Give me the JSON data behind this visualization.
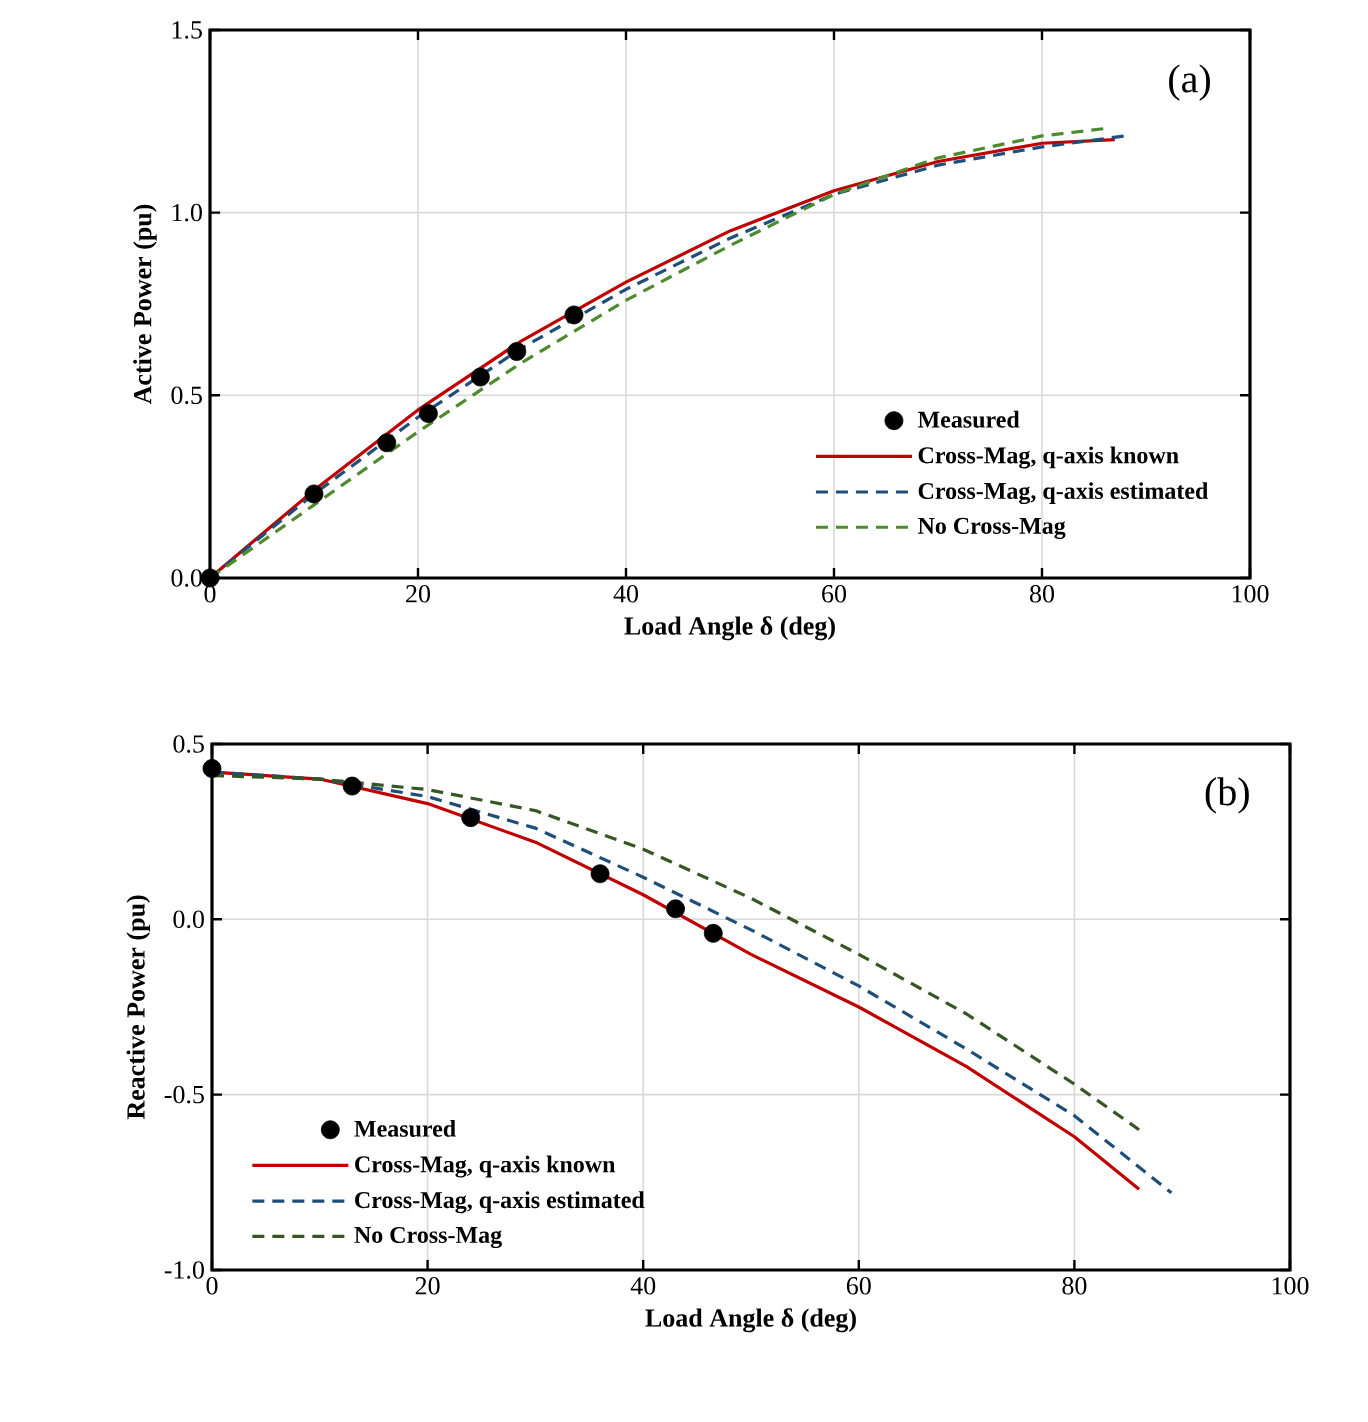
{
  "chart_data": [
    {
      "type": "line",
      "xlabel": "Load Angle δ (deg)",
      "ylabel": "Active Power (pu)",
      "xlim": [
        0,
        100
      ],
      "ylim": [
        0,
        1.5
      ],
      "xticks": [
        0,
        20,
        40,
        60,
        80,
        100
      ],
      "yticks": [
        {
          "value": 0,
          "label": "0.0"
        },
        {
          "value": 0.5,
          "label": "0.5"
        },
        {
          "value": 1,
          "label": "1.0"
        },
        {
          "value": 1.5,
          "label": "1.5"
        }
      ],
      "grid": true,
      "legend": "bottom right",
      "annotations": [
        "(a)"
      ],
      "series": [
        {
          "name": "Measured",
          "type": "scatter",
          "color": "#000000",
          "x": [
            0,
            10,
            17,
            21,
            26,
            29.5,
            35
          ],
          "values": [
            0,
            0.23,
            0.37,
            0.45,
            0.55,
            0.62,
            0.72
          ]
        },
        {
          "name": "Cross-Mag, q-axis known",
          "color": "#c00000",
          "line_style": "solid",
          "x": [
            0,
            10,
            20,
            30,
            40,
            50,
            60,
            70,
            80,
            87
          ],
          "values": [
            0,
            0.24,
            0.46,
            0.65,
            0.81,
            0.95,
            1.06,
            1.14,
            1.19,
            1.2
          ]
        },
        {
          "name": "Cross-Mag, q-axis estimated",
          "color": "#1f4e79",
          "line_style": "dashed",
          "x": [
            0,
            10,
            20,
            30,
            40,
            50,
            60,
            70,
            80,
            88
          ],
          "values": [
            0,
            0.23,
            0.44,
            0.63,
            0.79,
            0.93,
            1.05,
            1.13,
            1.18,
            1.21
          ]
        },
        {
          "name": "No Cross-Mag",
          "color": "#4e8a2e",
          "line_style": "dashed",
          "x": [
            0,
            10,
            20,
            30,
            40,
            50,
            60,
            70,
            80,
            86
          ],
          "values": [
            0,
            0.2,
            0.4,
            0.59,
            0.76,
            0.91,
            1.05,
            1.15,
            1.21,
            1.23
          ]
        }
      ]
    },
    {
      "type": "line",
      "xlabel": "Load Angle δ (deg)",
      "ylabel": "Reactive Power (pu)",
      "xlim": [
        0,
        100
      ],
      "ylim": [
        -1,
        0.5
      ],
      "xticks": [
        0,
        20,
        40,
        60,
        80,
        100
      ],
      "yticks": [
        {
          "value": -1,
          "label": "-1.0"
        },
        {
          "value": -0.5,
          "label": "-0.5"
        },
        {
          "value": 0,
          "label": "0.0"
        },
        {
          "value": 0.5,
          "label": "0.5"
        }
      ],
      "grid": true,
      "legend": "bottom left",
      "annotations": [
        "(b)"
      ],
      "series": [
        {
          "name": "Measured",
          "type": "scatter",
          "color": "#000000",
          "x": [
            0,
            13,
            24,
            36,
            43,
            46.5
          ],
          "values": [
            0.43,
            0.38,
            0.29,
            0.13,
            0.03,
            -0.04
          ]
        },
        {
          "name": "Cross-Mag, q-axis known",
          "color": "#c00000",
          "line_style": "solid",
          "x": [
            0,
            10,
            20,
            30,
            40,
            50,
            60,
            70,
            80,
            86
          ],
          "values": [
            0.42,
            0.4,
            0.33,
            0.22,
            0.07,
            -0.1,
            -0.25,
            -0.42,
            -0.62,
            -0.77
          ]
        },
        {
          "name": "Cross-Mag, q-axis estimated",
          "color": "#1f4e79",
          "line_style": "dashed",
          "x": [
            0,
            10,
            20,
            30,
            40,
            50,
            60,
            70,
            80,
            89
          ],
          "values": [
            0.42,
            0.4,
            0.35,
            0.26,
            0.12,
            -0.03,
            -0.19,
            -0.37,
            -0.56,
            -0.78
          ]
        },
        {
          "name": "No Cross-Mag",
          "color": "#375623",
          "line_style": "dashed",
          "x": [
            0,
            10,
            20,
            30,
            40,
            50,
            60,
            70,
            80,
            86
          ],
          "values": [
            0.41,
            0.4,
            0.37,
            0.31,
            0.2,
            0.06,
            -0.1,
            -0.27,
            -0.47,
            -0.6
          ]
        }
      ]
    }
  ]
}
